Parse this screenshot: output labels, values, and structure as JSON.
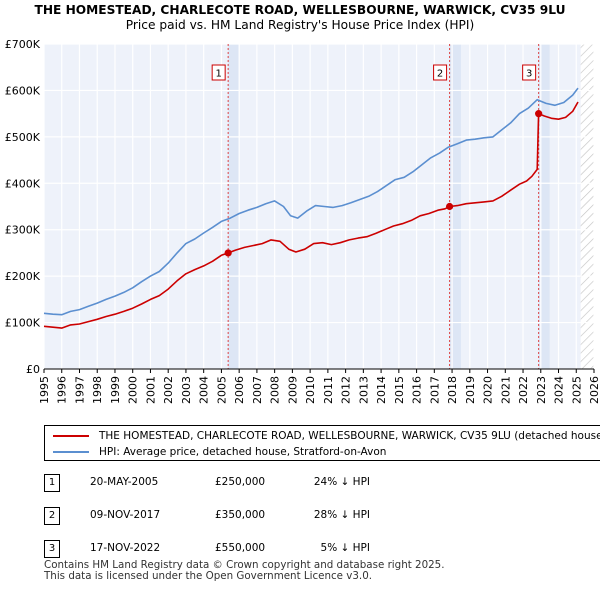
{
  "header": {
    "title_line1": "THE HOMESTEAD, CHARLECOTE ROAD, WELLESBOURNE, WARWICK, CV35 9LU",
    "title_line2": "Price paid vs. HM Land Registry's House Price Index (HPI)"
  },
  "chart_data": {
    "type": "line",
    "title": "THE HOMESTEAD, CHARLECOTE ROAD, WELLESBOURNE, WARWICK, CV35 9LU",
    "subtitle": "Price paid vs. HM Land Registry's House Price Index (HPI)",
    "xlabel": "",
    "ylabel": "",
    "xlim": [
      1995,
      2026
    ],
    "ylim": [
      0,
      700000
    ],
    "y_ticks": [
      0,
      100000,
      200000,
      300000,
      400000,
      500000,
      600000,
      700000
    ],
    "y_tick_labels": [
      "£0",
      "£100K",
      "£200K",
      "£300K",
      "£400K",
      "£500K",
      "£600K",
      "£700K"
    ],
    "x_ticks": [
      1995,
      1996,
      1997,
      1998,
      1999,
      2000,
      2001,
      2002,
      2003,
      2004,
      2005,
      2006,
      2007,
      2008,
      2009,
      2010,
      2011,
      2012,
      2013,
      2014,
      2015,
      2016,
      2017,
      2018,
      2019,
      2020,
      2021,
      2022,
      2023,
      2024,
      2025,
      2026
    ],
    "grid": true,
    "series": [
      {
        "name": "THE HOMESTEAD, CHARLECOTE ROAD, WELLESBOURNE, WARWICK, CV35 9LU (detached house)",
        "color": "#cc0000",
        "points": [
          [
            1995.0,
            92000
          ],
          [
            1995.5,
            90000
          ],
          [
            1996.0,
            88000
          ],
          [
            1996.5,
            95000
          ],
          [
            1997.0,
            97000
          ],
          [
            1997.5,
            102000
          ],
          [
            1998.0,
            107000
          ],
          [
            1998.5,
            113000
          ],
          [
            1999.0,
            118000
          ],
          [
            1999.5,
            124000
          ],
          [
            2000.0,
            131000
          ],
          [
            2000.5,
            140000
          ],
          [
            2001.0,
            150000
          ],
          [
            2001.5,
            158000
          ],
          [
            2002.0,
            172000
          ],
          [
            2002.5,
            190000
          ],
          [
            2003.0,
            205000
          ],
          [
            2003.5,
            214000
          ],
          [
            2004.0,
            222000
          ],
          [
            2004.5,
            232000
          ],
          [
            2005.0,
            245000
          ],
          [
            2005.38,
            250000
          ],
          [
            2005.8,
            256000
          ],
          [
            2006.3,
            262000
          ],
          [
            2006.8,
            266000
          ],
          [
            2007.3,
            270000
          ],
          [
            2007.8,
            278000
          ],
          [
            2008.3,
            275000
          ],
          [
            2008.8,
            258000
          ],
          [
            2009.2,
            252000
          ],
          [
            2009.7,
            258000
          ],
          [
            2010.2,
            270000
          ],
          [
            2010.7,
            272000
          ],
          [
            2011.2,
            268000
          ],
          [
            2011.7,
            272000
          ],
          [
            2012.2,
            278000
          ],
          [
            2012.7,
            282000
          ],
          [
            2013.2,
            285000
          ],
          [
            2013.7,
            292000
          ],
          [
            2014.2,
            300000
          ],
          [
            2014.7,
            308000
          ],
          [
            2015.2,
            313000
          ],
          [
            2015.7,
            320000
          ],
          [
            2016.2,
            330000
          ],
          [
            2016.7,
            335000
          ],
          [
            2017.2,
            342000
          ],
          [
            2017.6,
            345000
          ],
          [
            2017.86,
            350000
          ],
          [
            2018.3,
            352000
          ],
          [
            2018.8,
            356000
          ],
          [
            2019.3,
            358000
          ],
          [
            2019.8,
            360000
          ],
          [
            2020.3,
            362000
          ],
          [
            2020.8,
            372000
          ],
          [
            2021.3,
            385000
          ],
          [
            2021.8,
            398000
          ],
          [
            2022.2,
            405000
          ],
          [
            2022.5,
            415000
          ],
          [
            2022.8,
            430000
          ],
          [
            2022.88,
            550000
          ],
          [
            2023.2,
            545000
          ],
          [
            2023.6,
            540000
          ],
          [
            2024.0,
            538000
          ],
          [
            2024.4,
            542000
          ],
          [
            2024.8,
            555000
          ],
          [
            2025.1,
            575000
          ]
        ]
      },
      {
        "name": "HPI: Average price, detached house, Stratford-on-Avon",
        "color": "#5b8fd0",
        "points": [
          [
            1995.0,
            120000
          ],
          [
            1995.5,
            118000
          ],
          [
            1996.0,
            117000
          ],
          [
            1996.5,
            124000
          ],
          [
            1997.0,
            128000
          ],
          [
            1997.5,
            135000
          ],
          [
            1998.0,
            142000
          ],
          [
            1998.5,
            150000
          ],
          [
            1999.0,
            157000
          ],
          [
            1999.5,
            165000
          ],
          [
            2000.0,
            175000
          ],
          [
            2000.5,
            188000
          ],
          [
            2001.0,
            200000
          ],
          [
            2001.5,
            210000
          ],
          [
            2002.0,
            228000
          ],
          [
            2002.5,
            250000
          ],
          [
            2003.0,
            270000
          ],
          [
            2003.5,
            280000
          ],
          [
            2004.0,
            293000
          ],
          [
            2004.5,
            305000
          ],
          [
            2005.0,
            318000
          ],
          [
            2005.5,
            325000
          ],
          [
            2006.0,
            335000
          ],
          [
            2006.5,
            342000
          ],
          [
            2007.0,
            348000
          ],
          [
            2007.5,
            356000
          ],
          [
            2008.0,
            362000
          ],
          [
            2008.5,
            350000
          ],
          [
            2008.9,
            330000
          ],
          [
            2009.3,
            325000
          ],
          [
            2009.8,
            340000
          ],
          [
            2010.3,
            352000
          ],
          [
            2010.8,
            350000
          ],
          [
            2011.3,
            348000
          ],
          [
            2011.8,
            352000
          ],
          [
            2012.3,
            358000
          ],
          [
            2012.8,
            365000
          ],
          [
            2013.3,
            372000
          ],
          [
            2013.8,
            382000
          ],
          [
            2014.3,
            395000
          ],
          [
            2014.8,
            408000
          ],
          [
            2015.3,
            413000
          ],
          [
            2015.8,
            425000
          ],
          [
            2016.3,
            440000
          ],
          [
            2016.8,
            455000
          ],
          [
            2017.3,
            465000
          ],
          [
            2017.8,
            478000
          ],
          [
            2018.3,
            485000
          ],
          [
            2018.8,
            493000
          ],
          [
            2019.3,
            495000
          ],
          [
            2019.8,
            498000
          ],
          [
            2020.3,
            500000
          ],
          [
            2020.8,
            515000
          ],
          [
            2021.3,
            530000
          ],
          [
            2021.8,
            550000
          ],
          [
            2022.3,
            562000
          ],
          [
            2022.8,
            580000
          ],
          [
            2023.3,
            572000
          ],
          [
            2023.8,
            568000
          ],
          [
            2024.3,
            574000
          ],
          [
            2024.8,
            590000
          ],
          [
            2025.1,
            605000
          ]
        ]
      }
    ],
    "sale_markers": [
      {
        "label": "1",
        "x": 2005.38,
        "y": 250000
      },
      {
        "label": "2",
        "x": 2017.86,
        "y": 350000
      },
      {
        "label": "3",
        "x": 2022.88,
        "y": 550000
      }
    ],
    "shaded_periods": [
      [
        2005.38,
        2006.0
      ],
      [
        2017.86,
        2018.5
      ],
      [
        2022.88,
        2023.5
      ]
    ],
    "hatched_region": [
      2025.25,
      2026
    ]
  },
  "legend": {
    "items": [
      {
        "label": "THE HOMESTEAD, CHARLECOTE ROAD, WELLESBOURNE, WARWICK, CV35 9LU (detached house)",
        "color": "#cc0000"
      },
      {
        "label": "HPI: Average price, detached house, Stratford-on-Avon",
        "color": "#5b8fd0"
      }
    ]
  },
  "sales": [
    {
      "num": "1",
      "date": "20-MAY-2005",
      "price": "£250,000",
      "hpi": "24% ↓ HPI"
    },
    {
      "num": "2",
      "date": "09-NOV-2017",
      "price": "£350,000",
      "hpi": "28% ↓ HPI"
    },
    {
      "num": "3",
      "date": "17-NOV-2022",
      "price": "£550,000",
      "hpi": "5% ↓ HPI"
    }
  ],
  "footer": {
    "line1": "Contains HM Land Registry data © Crown copyright and database right 2025.",
    "line2": "This data is licensed under the Open Government Licence v3.0."
  }
}
